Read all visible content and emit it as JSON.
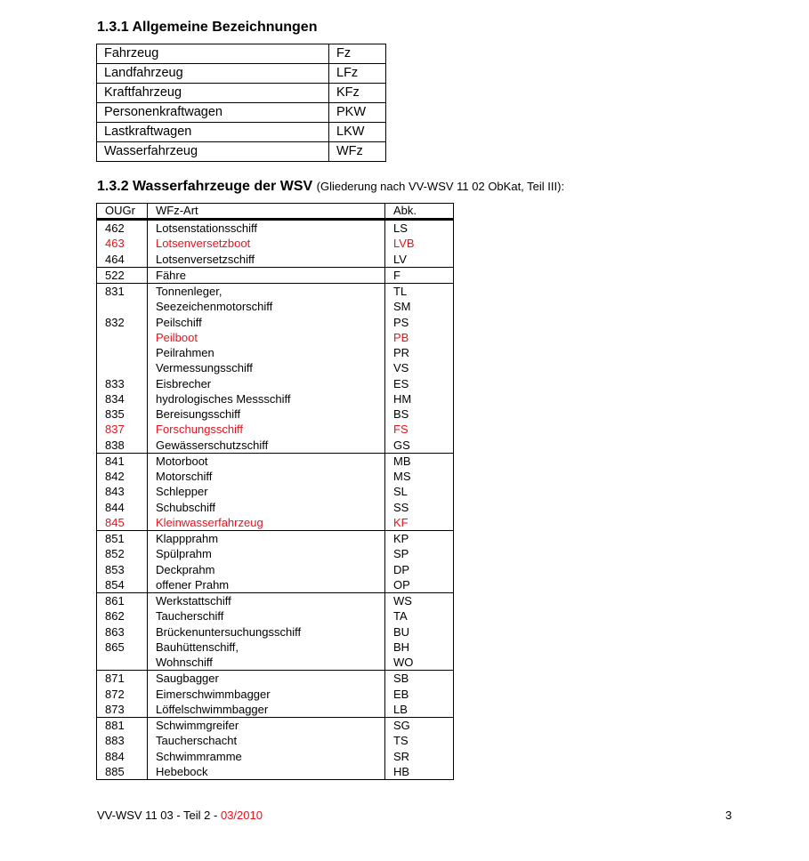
{
  "section1": {
    "title": "1.3.1 Allgemeine Bezeichnungen",
    "rows": [
      [
        "Fahrzeug",
        "Fz"
      ],
      [
        "Landfahrzeug",
        "LFz"
      ],
      [
        "Kraftfahrzeug",
        "KFz"
      ],
      [
        "Personenkraftwagen",
        "PKW"
      ],
      [
        "Lastkraftwagen",
        "LKW"
      ],
      [
        "Wasserfahrzeug",
        "WFz"
      ]
    ]
  },
  "section2": {
    "title": "1.3.2 Wasserfahrzeuge der WSV",
    "subtitle": "(Gliederung nach VV-WSV 11 02 ObKat, Teil III):",
    "headers": [
      "OUGr",
      "WFz-Art",
      "Abk."
    ],
    "highlight_color": "#e8121c",
    "groups": [
      [
        [
          "462",
          "Lotsenstationsschiff",
          "LS",
          false
        ],
        [
          "463",
          "Lotsenversetzboot",
          "LVB",
          true
        ],
        [
          "464",
          "Lotsenversetzschiff",
          "LV",
          false
        ]
      ],
      [
        [
          "522",
          "Fähre",
          "F",
          false
        ]
      ],
      [
        [
          "831",
          "Tonnenleger,",
          "TL",
          false
        ],
        [
          "",
          "Seezeichenmotorschiff",
          "SM",
          false
        ],
        [
          "832",
          "Peilschiff",
          "PS",
          false
        ],
        [
          "",
          "Peilboot",
          "PB",
          true
        ],
        [
          "",
          "Peilrahmen",
          "PR",
          false
        ],
        [
          "",
          "Vermessungsschiff",
          "VS",
          false
        ],
        [
          "833",
          "Eisbrecher",
          "ES",
          false
        ],
        [
          "834",
          "hydrologisches Messschiff",
          "HM",
          false
        ],
        [
          "835",
          "Bereisungsschiff",
          "BS",
          false
        ],
        [
          "837",
          "Forschungsschiff",
          "FS",
          true
        ],
        [
          "838",
          "Gewässerschutzschiff",
          "GS",
          false
        ]
      ],
      [
        [
          "841",
          "Motorboot",
          "MB",
          false
        ],
        [
          "842",
          "Motorschiff",
          "MS",
          false
        ],
        [
          "843",
          "Schlepper",
          "SL",
          false
        ],
        [
          "844",
          "Schubschiff",
          "SS",
          false
        ],
        [
          "845",
          "Kleinwasserfahrzeug",
          "KF",
          true
        ]
      ],
      [
        [
          "851",
          "Klappprahm",
          "KP",
          false
        ],
        [
          "852",
          "Spülprahm",
          "SP",
          false
        ],
        [
          "853",
          "Deckprahm",
          "DP",
          false
        ],
        [
          "854",
          "offener Prahm",
          "OP",
          false
        ]
      ],
      [
        [
          "861",
          "Werkstattschiff",
          "WS",
          false
        ],
        [
          "862",
          "Taucherschiff",
          "TA",
          false
        ],
        [
          "863",
          "Brückenuntersuchungsschiff",
          "BU",
          false
        ],
        [
          "865",
          "Bauhüttenschiff,",
          "BH",
          false
        ],
        [
          "",
          "Wohnschiff",
          "WO",
          false
        ]
      ],
      [
        [
          "871",
          "Saugbagger",
          "SB",
          false
        ],
        [
          "872",
          "Eimerschwimmbagger",
          "EB",
          false
        ],
        [
          "873",
          "Löffelschwimmbagger",
          "LB",
          false
        ]
      ],
      [
        [
          "881",
          "Schwimmgreifer",
          "SG",
          false
        ],
        [
          "883",
          "Taucherschacht",
          "TS",
          false
        ],
        [
          "884",
          "Schwimmramme",
          "SR",
          false
        ],
        [
          "885",
          "Hebebock",
          "HB",
          false
        ]
      ]
    ]
  },
  "footer": {
    "doc": "VV-WSV 11 03 - Teil 2 - ",
    "date": "03/2010",
    "page": "3"
  }
}
